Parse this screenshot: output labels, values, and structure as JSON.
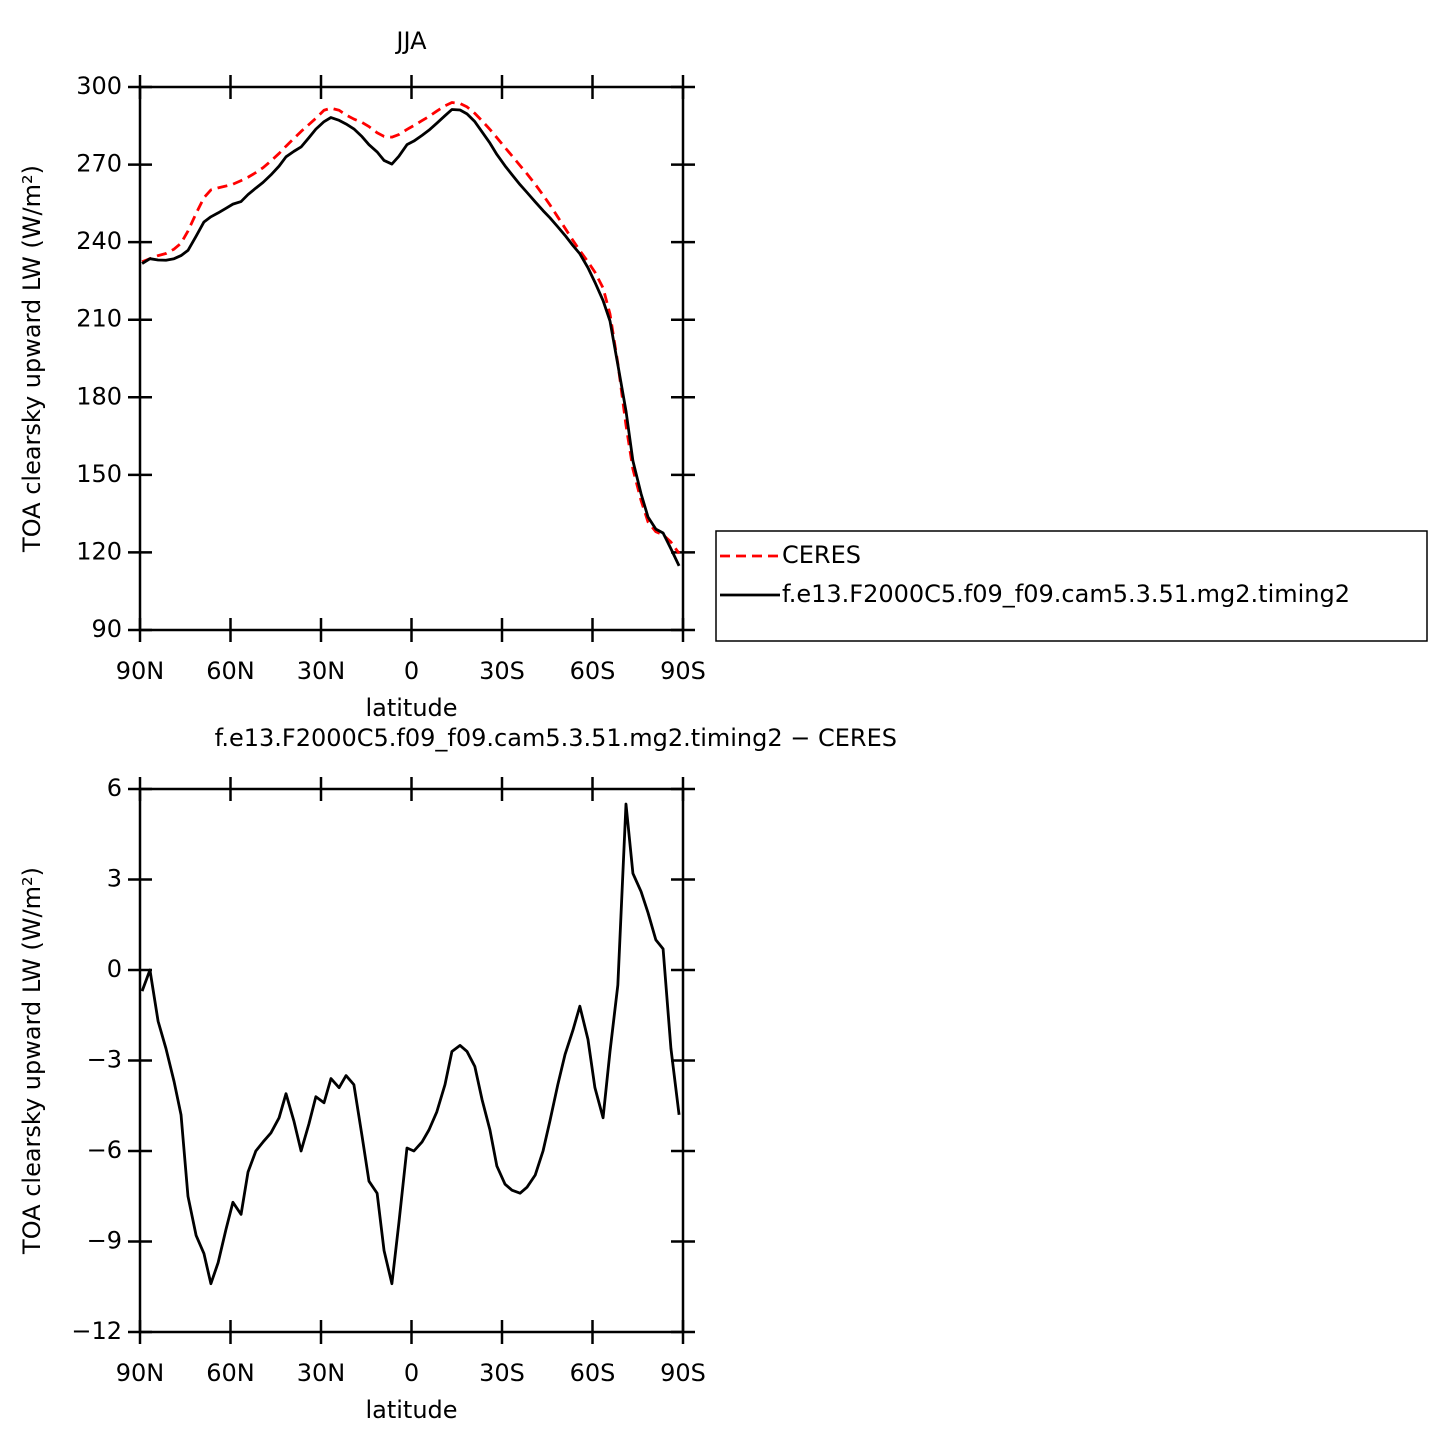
{
  "chart_data": [
    {
      "type": "line",
      "title": "JJA",
      "x_label": "latitude",
      "y_label": "TOA clearsky upward LW (W/m²)",
      "x": [
        89.3,
        86.7,
        84.0,
        81.4,
        78.7,
        76.4,
        74.1,
        71.4,
        68.8,
        66.5,
        64.1,
        61.5,
        59.2,
        56.5,
        54.2,
        51.6,
        49.2,
        46.6,
        43.9,
        41.6,
        39.0,
        36.6,
        34.0,
        31.7,
        29.0,
        26.7,
        24.0,
        21.7,
        19.1,
        16.4,
        14.1,
        11.4,
        9.1,
        6.5,
        4.2,
        1.5,
        -0.8,
        -3.5,
        -5.8,
        -8.4,
        -11.1,
        -13.4,
        -16.1,
        -18.4,
        -21.0,
        -23.4,
        -26.0,
        -28.3,
        -31.0,
        -33.3,
        -36.0,
        -38.3,
        -41.0,
        -43.6,
        -45.9,
        -48.5,
        -50.9,
        -53.5,
        -55.8,
        -58.5,
        -60.8,
        -63.5,
        -65.8,
        -68.4,
        -71.1,
        -73.4,
        -76.1,
        -78.4,
        -81.0,
        -83.4,
        -86.0,
        -88.7
      ],
      "series": [
        {
          "name": "CERES",
          "color": "#ff0000",
          "line_style": "dashed",
          "values": [
            232.4,
            233.6,
            234.8,
            235.6,
            237.3,
            239.6,
            244.3,
            251.1,
            257.2,
            260.2,
            261,
            261.7,
            262.4,
            263.8,
            265.1,
            266.9,
            268.8,
            271.4,
            274.3,
            277.1,
            280.1,
            282.8,
            285.5,
            287.9,
            291,
            291.8,
            291.0,
            289.2,
            287.6,
            286.3,
            284.7,
            282.3,
            280.9,
            280.6,
            281.6,
            283.6,
            285.1,
            287.0,
            288.6,
            290.7,
            292.7,
            294.0,
            293.6,
            292.3,
            289.8,
            286.9,
            283.6,
            280.4,
            276.6,
            273.4,
            269.6,
            266.4,
            262.4,
            258.2,
            254.4,
            249.7,
            245.4,
            240.7,
            236.7,
            232.4,
            228.4,
            222.3,
            212.2,
            193.1,
            169.2,
            152.2,
            140.1,
            131.8,
            128.0,
            126.8,
            124.0,
            119.6
          ]
        },
        {
          "name": "f.e13.F2000C5.f09_f09.cam5.3.51.mg2.timing2",
          "color": "#000000",
          "line_style": "solid",
          "values": [
            231.7,
            233.6,
            233.1,
            233.0,
            233.6,
            234.8,
            236.8,
            242.3,
            247.8,
            249.8,
            251.3,
            253.1,
            254.7,
            255.7,
            258.4,
            260.9,
            263.1,
            266.0,
            269.4,
            273.0,
            275.1,
            276.8,
            280.4,
            283.7,
            286.6,
            288.2,
            287.1,
            285.7,
            283.8,
            280.8,
            277.7,
            274.9,
            271.6,
            270.2,
            273.2,
            277.7,
            279.1,
            281.3,
            283.3,
            286.0,
            288.9,
            291.3,
            291.1,
            289.6,
            286.6,
            282.6,
            278.3,
            273.9,
            269.5,
            266.1,
            262.2,
            259.2,
            255.6,
            252.2,
            249.4,
            245.9,
            242.6,
            238.7,
            235.5,
            230.1,
            224.5,
            217.4,
            209.5,
            192.6,
            174.7,
            155.4,
            142.7,
            133.7,
            129.0,
            127.5,
            121.4,
            114.8
          ]
        }
      ],
      "xlim": [
        90,
        -90
      ],
      "xticks": [
        {
          "value": 90,
          "label": "90N"
        },
        {
          "value": 60,
          "label": "60N"
        },
        {
          "value": 30,
          "label": "30N"
        },
        0,
        {
          "value": -30,
          "label": "30S"
        },
        {
          "value": -60,
          "label": "60S"
        },
        {
          "value": -90,
          "label": "90S"
        }
      ],
      "ylim": [
        90,
        300
      ],
      "yticks": [
        90,
        120,
        150,
        180,
        210,
        240,
        270,
        300
      ],
      "legend": "right"
    },
    {
      "type": "line",
      "title": "f.e13.F2000C5.f09_f09.cam5.3.51.mg2.timing2 − CERES",
      "x_label": "latitude",
      "y_label": "TOA clearsky upward LW (W/m²)",
      "x": [
        89.3,
        86.7,
        84.0,
        81.4,
        78.7,
        76.4,
        74.1,
        71.4,
        68.8,
        66.5,
        64.1,
        61.5,
        59.2,
        56.5,
        54.2,
        51.6,
        49.2,
        46.6,
        43.9,
        41.6,
        39.0,
        36.6,
        34.0,
        31.7,
        29.0,
        26.7,
        24.0,
        21.7,
        19.1,
        16.4,
        14.1,
        11.4,
        9.1,
        6.5,
        4.2,
        1.5,
        -0.8,
        -3.5,
        -5.8,
        -8.4,
        -11.1,
        -13.4,
        -16.1,
        -18.4,
        -21.0,
        -23.4,
        -26.0,
        -28.3,
        -31.0,
        -33.3,
        -36.0,
        -38.3,
        -41.0,
        -43.6,
        -45.9,
        -48.5,
        -50.9,
        -53.5,
        -55.8,
        -58.5,
        -60.8,
        -63.5,
        -65.8,
        -68.4,
        -71.1,
        -73.4,
        -76.1,
        -78.4,
        -81.0,
        -83.4,
        -86.0,
        -88.7
      ],
      "values": [
        -0.7,
        0,
        -1.7,
        -2.6,
        -3.7,
        -4.8,
        -7.5,
        -8.8,
        -9.4,
        -10.4,
        -9.7,
        -8.6,
        -7.7,
        -8.1,
        -6.7,
        -6.0,
        -5.7,
        -5.4,
        -4.9,
        -4.1,
        -5.0,
        -6.0,
        -5.1,
        -4.2,
        -4.4,
        -3.6,
        -3.9,
        -3.5,
        -3.8,
        -5.5,
        -7.0,
        -7.4,
        -9.3,
        -10.4,
        -8.4,
        -5.9,
        -6.0,
        -5.7,
        -5.3,
        -4.7,
        -3.8,
        -2.7,
        -2.5,
        -2.7,
        -3.2,
        -4.3,
        -5.3,
        -6.5,
        -7.1,
        -7.3,
        -7.4,
        -7.2,
        -6.8,
        -6.0,
        -5.0,
        -3.8,
        -2.8,
        -2.0,
        -1.2,
        -2.3,
        -3.9,
        -4.9,
        -2.7,
        -0.5,
        5.5,
        3.2,
        2.6,
        1.9,
        1.0,
        0.7,
        -2.6,
        -4.8
      ],
      "color": "#000000",
      "xlim": [
        90,
        -90
      ],
      "xticks": [
        {
          "value": 90,
          "label": "90N"
        },
        {
          "value": 60,
          "label": "60N"
        },
        {
          "value": 30,
          "label": "30N"
        },
        0,
        {
          "value": -30,
          "label": "30S"
        },
        {
          "value": -60,
          "label": "60S"
        },
        {
          "value": -90,
          "label": "90S"
        }
      ],
      "ylim": [
        -12,
        6
      ],
      "yticks": [
        {
          "value": -12,
          "label": "−12"
        },
        {
          "value": -9,
          "label": "−9"
        },
        {
          "value": -6,
          "label": "−6"
        },
        {
          "value": -3,
          "label": "−3"
        },
        0,
        3,
        6
      ]
    }
  ]
}
